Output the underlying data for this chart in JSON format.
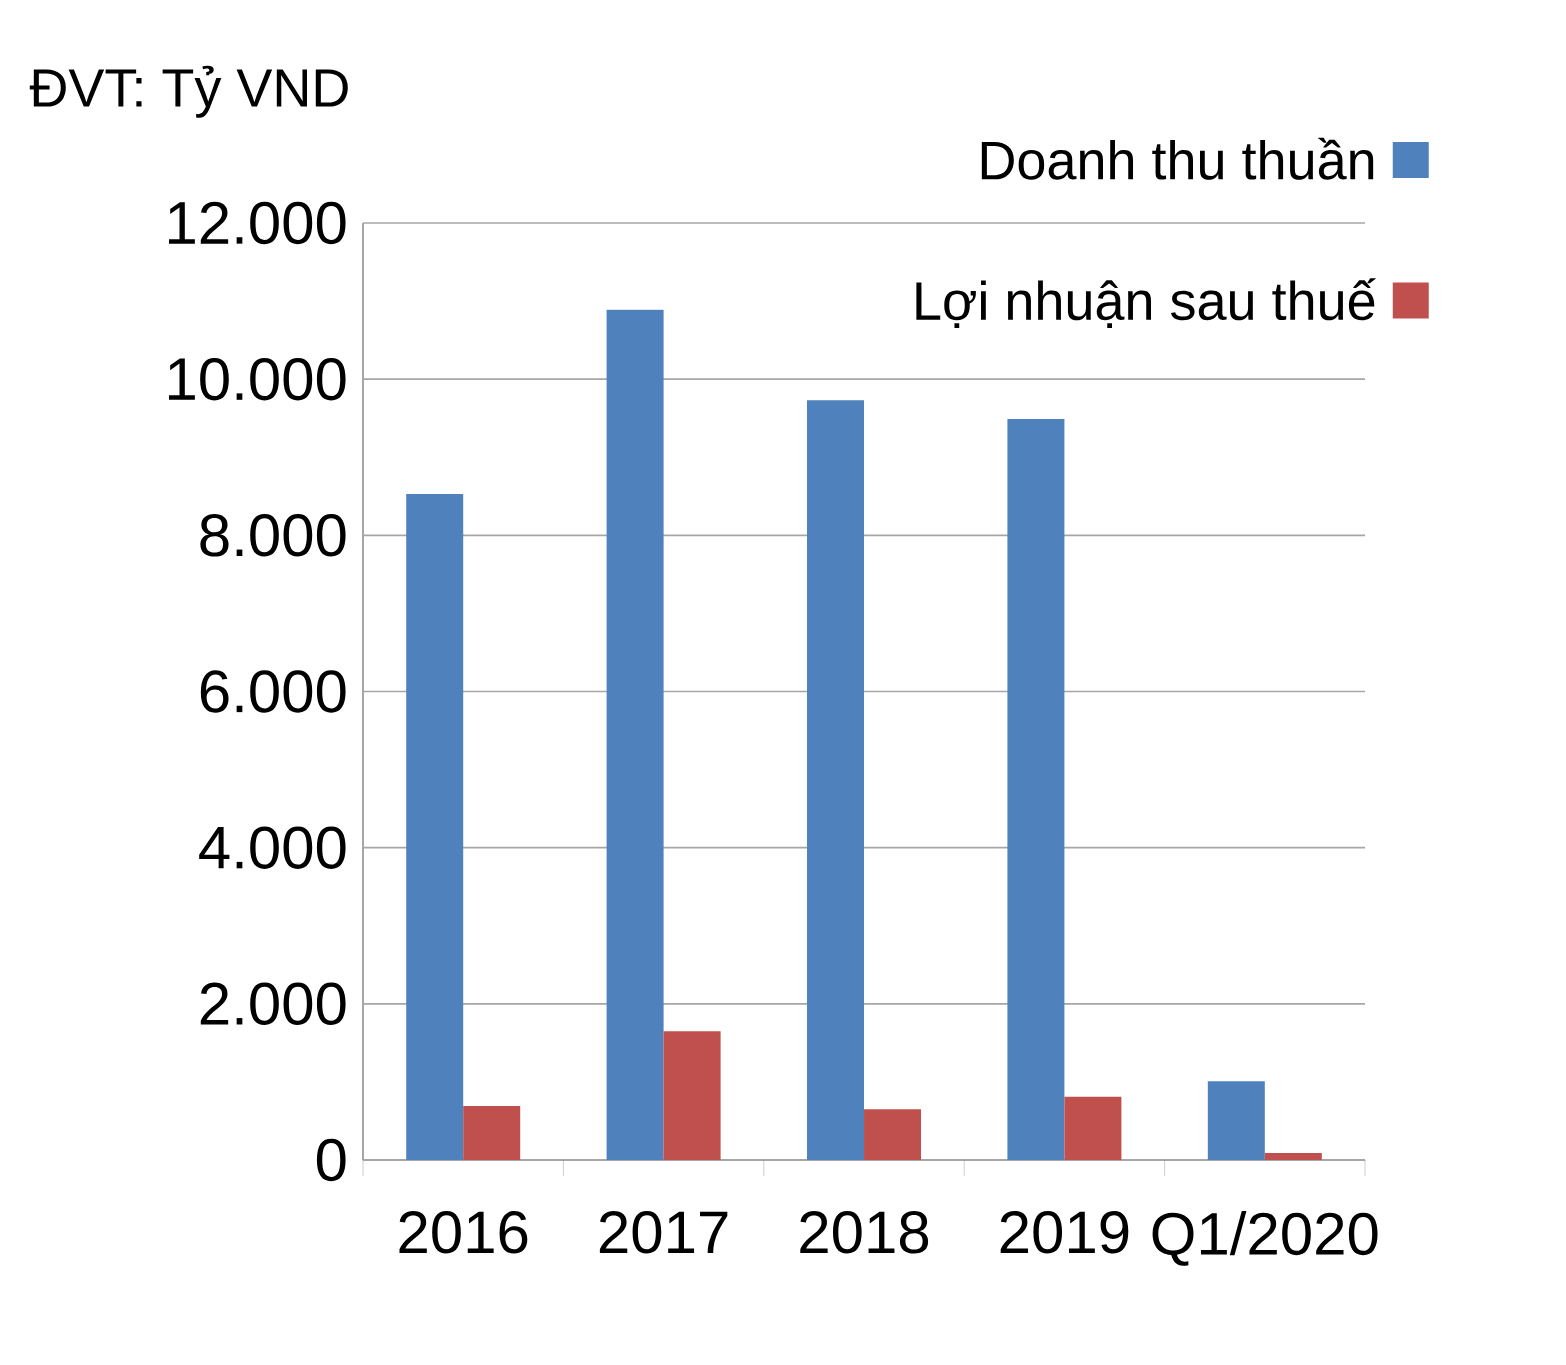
{
  "chart_data": {
    "type": "bar",
    "ylabel": "ĐVT: Tỷ VND",
    "categories": [
      "2016",
      "2017",
      "2018",
      "2019",
      "Q1/2020"
    ],
    "series": [
      {
        "name": "Doanh thu thuần",
        "color": "#4f81bd",
        "values": [
          8530,
          10890,
          9730,
          9490,
          1010
        ]
      },
      {
        "name": "Lợi nhuận sau thuế",
        "color": "#c0504d",
        "values": [
          690,
          1650,
          650,
          810,
          90
        ]
      }
    ],
    "ylim": [
      0,
      12000
    ],
    "yticks": [
      {
        "value": 0,
        "label": "0"
      },
      {
        "value": 2000,
        "label": "2.000"
      },
      {
        "value": 4000,
        "label": "4.000"
      },
      {
        "value": 6000,
        "label": "6.000"
      },
      {
        "value": 8000,
        "label": "8.000"
      },
      {
        "value": 10000,
        "label": "10.000"
      },
      {
        "value": 12000,
        "label": "12.000"
      }
    ],
    "grid": "y",
    "legend": "top right"
  }
}
